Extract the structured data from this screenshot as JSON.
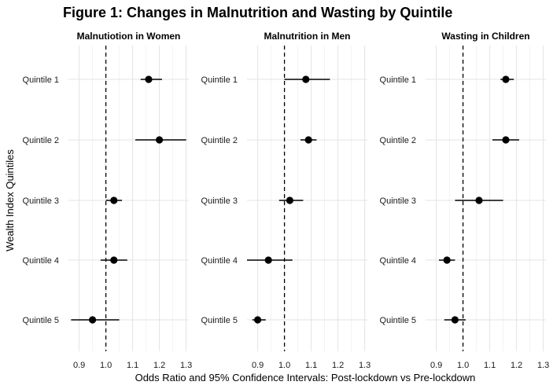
{
  "figure_title": "Figure 1: Changes in Malnutrition and Wasting by Quintile",
  "chart_data": {
    "type": "scatter",
    "subtype": "forest-plot",
    "ylabel": "Wealth Index Quintiles",
    "xlabel": "Odds Ratio and 95% Confidence Intervals: Post-lockdown vs Pre-lockdown",
    "categories": [
      "Quintile 1",
      "Quintile 2",
      "Quintile 3",
      "Quintile 4",
      "Quintile 5"
    ],
    "xlim": [
      0.86,
      1.31
    ],
    "xticks": [
      "0.9",
      "1.0",
      "1.1",
      "1.2",
      "1.3"
    ],
    "reference_line": 1.0,
    "grid": true,
    "panels": [
      {
        "title": "Malnutiotion in Women",
        "points": [
          {
            "category": "Quintile 1",
            "estimate": 1.16,
            "lower": 1.13,
            "upper": 1.21
          },
          {
            "category": "Quintile 2",
            "estimate": 1.2,
            "lower": 1.11,
            "upper": 1.3
          },
          {
            "category": "Quintile 3",
            "estimate": 1.03,
            "lower": 1.0,
            "upper": 1.06
          },
          {
            "category": "Quintile 4",
            "estimate": 1.03,
            "lower": 0.98,
            "upper": 1.08
          },
          {
            "category": "Quintile 5",
            "estimate": 0.95,
            "lower": 0.87,
            "upper": 1.05
          }
        ]
      },
      {
        "title": "Malnutrition in Men",
        "points": [
          {
            "category": "Quintile 1",
            "estimate": 1.08,
            "lower": 1.0,
            "upper": 1.17
          },
          {
            "category": "Quintile 2",
            "estimate": 1.09,
            "lower": 1.06,
            "upper": 1.12
          },
          {
            "category": "Quintile 3",
            "estimate": 1.02,
            "lower": 0.98,
            "upper": 1.07
          },
          {
            "category": "Quintile 4",
            "estimate": 0.94,
            "lower": 0.86,
            "upper": 1.03
          },
          {
            "category": "Quintile 5",
            "estimate": 0.9,
            "lower": 0.88,
            "upper": 0.93
          }
        ]
      },
      {
        "title": "Wasting in Children",
        "points": [
          {
            "category": "Quintile 1",
            "estimate": 1.16,
            "lower": 1.14,
            "upper": 1.19
          },
          {
            "category": "Quintile 2",
            "estimate": 1.16,
            "lower": 1.11,
            "upper": 1.21
          },
          {
            "category": "Quintile 3",
            "estimate": 1.06,
            "lower": 0.97,
            "upper": 1.15
          },
          {
            "category": "Quintile 4",
            "estimate": 0.94,
            "lower": 0.91,
            "upper": 0.97
          },
          {
            "category": "Quintile 5",
            "estimate": 0.97,
            "lower": 0.93,
            "upper": 1.01
          }
        ]
      }
    ]
  }
}
